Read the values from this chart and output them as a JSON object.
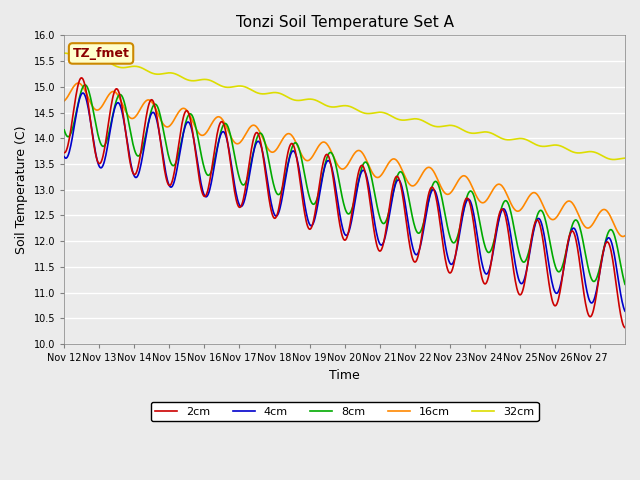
{
  "title": "Tonzi Soil Temperature Set A",
  "xlabel": "Time",
  "ylabel": "Soil Temperature (C)",
  "annotation": "TZ_fmet",
  "ylim": [
    10.0,
    16.0
  ],
  "yticks": [
    10.0,
    10.5,
    11.0,
    11.5,
    12.0,
    12.5,
    13.0,
    13.5,
    14.0,
    14.5,
    15.0,
    15.5,
    16.0
  ],
  "series": {
    "2cm": {
      "color": "#cc0000",
      "linewidth": 1.2
    },
    "4cm": {
      "color": "#0000cc",
      "linewidth": 1.2
    },
    "8cm": {
      "color": "#00aa00",
      "linewidth": 1.2
    },
    "16cm": {
      "color": "#ff8800",
      "linewidth": 1.2
    },
    "32cm": {
      "color": "#dddd00",
      "linewidth": 1.2
    }
  },
  "background_color": "#ebebeb",
  "xtick_labels": [
    "Nov 12",
    "Nov 13",
    "Nov 14",
    "Nov 15",
    "Nov 16",
    "Nov 17",
    "Nov 18",
    "Nov 19",
    "Nov 20",
    "Nov 21",
    "Nov 22",
    "Nov 23",
    "Nov 24",
    "Nov 25",
    "Nov 26",
    "Nov 27"
  ],
  "num_days": 16,
  "points_per_day": 48
}
